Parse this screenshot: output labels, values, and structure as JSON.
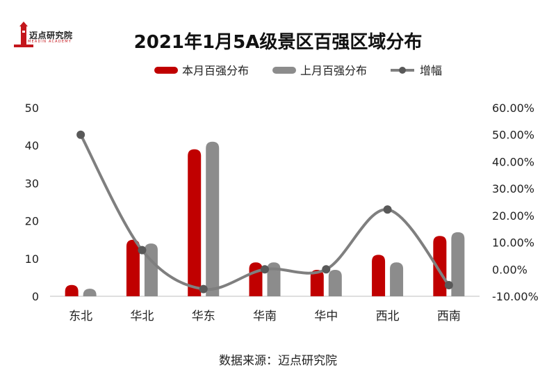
{
  "logo": {
    "name": "迈点研究院",
    "sub": "MEADIN ACADEMY",
    "color": "#c4161c"
  },
  "source": "数据来源：迈点研究院",
  "chart_data": {
    "type": "bar",
    "title": "2021年1月5A级景区百强区域分布",
    "categories": [
      "东北",
      "华北",
      "华东",
      "华南",
      "华中",
      "西北",
      "西南"
    ],
    "series": [
      {
        "name": "本月百强分布",
        "kind": "bar",
        "axis": "left",
        "color": "#c00000",
        "values": [
          3,
          15,
          39,
          9,
          7,
          11,
          16
        ]
      },
      {
        "name": "上月百强分布",
        "kind": "bar",
        "axis": "left",
        "color": "#8c8c8c",
        "values": [
          2,
          14,
          41,
          9,
          7,
          9,
          17
        ]
      },
      {
        "name": "增幅",
        "kind": "line",
        "axis": "right",
        "color": "#7f7f7f",
        "smooth": true,
        "values": [
          0.5,
          0.0714,
          -0.0732,
          0.0,
          0.0,
          0.2222,
          -0.0588
        ]
      }
    ],
    "y_left": {
      "min": 0,
      "max": 50,
      "ticks": [
        "0",
        "10",
        "20",
        "30",
        "40",
        "50"
      ]
    },
    "y_right": {
      "min": -0.1,
      "max": 0.6,
      "ticks": [
        "-10.00%",
        "0.00%",
        "10.00%",
        "20.00%",
        "30.00%",
        "40.00%",
        "50.00%",
        "60.00%"
      ]
    },
    "legend": "top-center",
    "grid": false
  }
}
